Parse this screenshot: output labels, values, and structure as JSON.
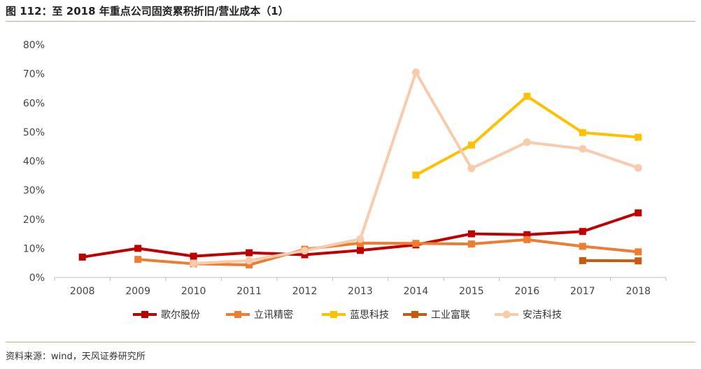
{
  "header": {
    "title": "图 112：至 2018 年重点公司固资累积折旧/营业成本（1）"
  },
  "footer": {
    "source": "资料来源：wind，天风证券研究所"
  },
  "chart_data": {
    "type": "line",
    "title": "",
    "xlabel": "",
    "ylabel": "",
    "categories": [
      "2008",
      "2009",
      "2010",
      "2011",
      "2012",
      "2013",
      "2014",
      "2015",
      "2016",
      "2017",
      "2018"
    ],
    "ylim": [
      0,
      80
    ],
    "yticks": [
      0,
      10,
      20,
      30,
      40,
      50,
      60,
      70,
      80
    ],
    "ytick_labels": [
      "0%",
      "10%",
      "20%",
      "30%",
      "40%",
      "50%",
      "60%",
      "70%",
      "80%"
    ],
    "grid": false,
    "legend_position": "bottom",
    "series": [
      {
        "name": "歌尔股份",
        "color": "#c00000",
        "marker": "square",
        "values": [
          7.0,
          10.0,
          7.3,
          8.5,
          7.8,
          9.3,
          11.2,
          15.0,
          14.7,
          15.8,
          22.2
        ]
      },
      {
        "name": "立讯精密",
        "color": "#ed7d31",
        "marker": "square",
        "values": [
          null,
          6.2,
          4.7,
          4.3,
          9.7,
          11.8,
          11.7,
          11.5,
          13.0,
          10.7,
          8.8
        ]
      },
      {
        "name": "蓝思科技",
        "color": "#ffc000",
        "marker": "square",
        "values": [
          null,
          null,
          null,
          null,
          null,
          null,
          35.2,
          45.5,
          62.3,
          49.8,
          48.2
        ]
      },
      {
        "name": "工业富联",
        "color": "#c55a11",
        "marker": "square",
        "values": [
          null,
          null,
          null,
          null,
          null,
          null,
          null,
          null,
          null,
          5.8,
          5.7
        ]
      },
      {
        "name": "安洁科技",
        "color": "#f8cbad",
        "marker": "circle",
        "values": [
          null,
          null,
          4.8,
          5.8,
          9.2,
          13.2,
          70.5,
          37.5,
          46.5,
          44.2,
          37.7
        ]
      }
    ]
  }
}
